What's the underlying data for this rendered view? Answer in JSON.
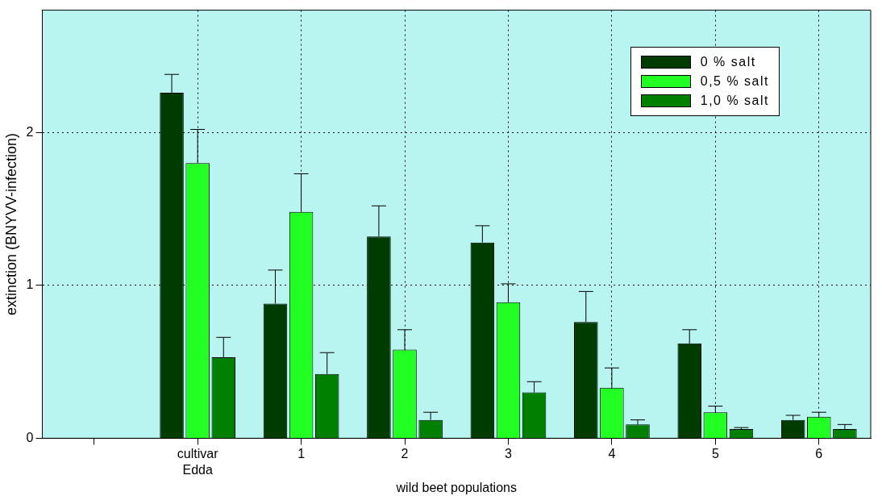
{
  "chart_data": {
    "type": "bar",
    "xlabel": "wild beet populations",
    "ylabel": "extinction (BNYVV-infection)",
    "categories": [
      "cultivar\nEdda",
      "1",
      "2",
      "3",
      "4",
      "5",
      "6"
    ],
    "series": [
      {
        "name": "0 % salt",
        "color": "#003c00",
        "values": [
          2.26,
          0.88,
          1.32,
          1.28,
          0.76,
          0.62,
          0.12
        ],
        "errors": [
          [
            2.26,
            2.38
          ],
          [
            0.88,
            1.1
          ],
          [
            1.32,
            1.52
          ],
          [
            1.28,
            1.39
          ],
          [
            0.76,
            0.96
          ],
          [
            0.62,
            0.71
          ],
          [
            0.12,
            0.15
          ]
        ]
      },
      {
        "name": "0,5 % salt",
        "color": "#22ff22",
        "values": [
          1.8,
          1.48,
          0.58,
          0.89,
          0.33,
          0.17,
          0.14
        ],
        "errors": [
          [
            1.8,
            2.02
          ],
          [
            1.48,
            1.73
          ],
          [
            0.58,
            0.71
          ],
          [
            0.89,
            1.01
          ],
          [
            0.33,
            0.46
          ],
          [
            0.17,
            0.21
          ],
          [
            0.14,
            0.17
          ]
        ]
      },
      {
        "name": "1,0 % salt",
        "color": "#008000",
        "values": [
          0.53,
          0.42,
          0.12,
          0.3,
          0.09,
          0.06,
          0.06
        ],
        "errors": [
          [
            0.53,
            0.66
          ],
          [
            0.42,
            0.56
          ],
          [
            0.12,
            0.17
          ],
          [
            0.3,
            0.37
          ],
          [
            0.09,
            0.12
          ],
          [
            0.06,
            0.07
          ],
          [
            0.06,
            0.09
          ]
        ]
      }
    ],
    "ylim": [
      0,
      2.8
    ],
    "yticks": [
      0,
      1,
      2
    ],
    "grid": true,
    "legend": "top right"
  }
}
